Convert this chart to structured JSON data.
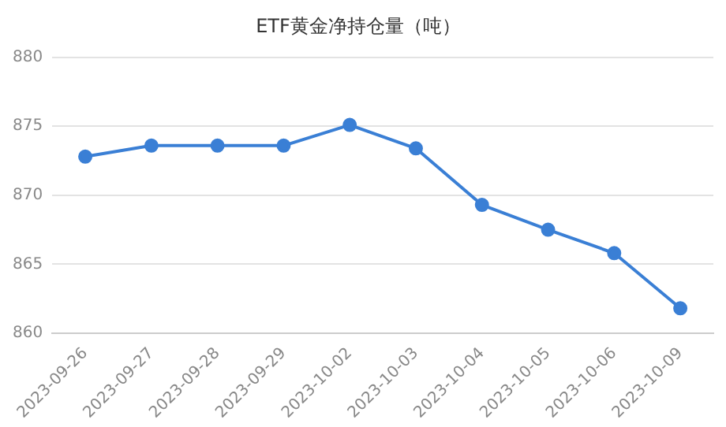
{
  "chart_data": {
    "type": "line",
    "title": "ETF黄金净持仓量（吨）",
    "categories": [
      "2023-09-26",
      "2023-09-27",
      "2023-09-28",
      "2023-09-29",
      "2023-10-02",
      "2023-10-03",
      "2023-10-04",
      "2023-10-05",
      "2023-10-06",
      "2023-10-09"
    ],
    "series": [
      {
        "color": "#3a7fd5",
        "values": [
          872.8,
          873.6,
          873.6,
          873.6,
          875.1,
          873.4,
          869.3,
          867.5,
          865.8,
          861.8
        ]
      }
    ],
    "ylim": [
      860,
      880
    ],
    "yticks": [
      860,
      865,
      870,
      875,
      880
    ],
    "grid": "y",
    "legend": false,
    "marker": "circle",
    "line_style": "solid"
  }
}
